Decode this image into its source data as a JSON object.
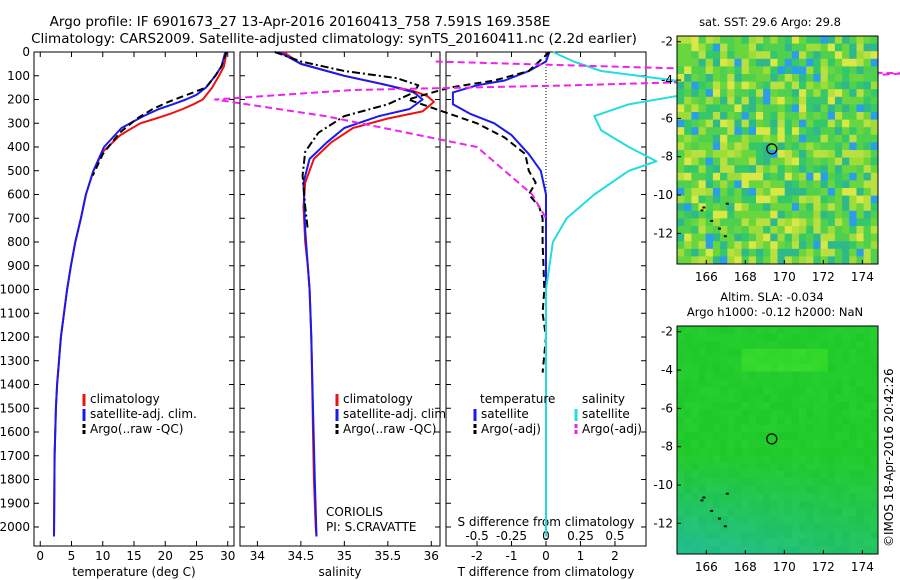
{
  "header": {
    "line1": "Argo profile: IF 6901673_27 13-Apr-2016 20160413_758 7.591S 169.358E",
    "line2": "Climatology: CARS2009. Satellite-adjusted climatology: synTS_20160411.nc (2.2d earlier)"
  },
  "credit": "©IMOS 18-Apr-2016 20:42:26",
  "colors": {
    "climatology": "#ee1111",
    "satellite": "#1a1aee",
    "argo": "#000000",
    "sal_satellite": "#22dddd",
    "sal_argo": "#ee22ee"
  },
  "chart_data": [
    {
      "type": "line",
      "panel": "temperature",
      "xlabel": "temperature (deg C)",
      "xticks": [
        0,
        5,
        10,
        15,
        20,
        25,
        30
      ],
      "xlim": [
        -1,
        31
      ],
      "ylim": [
        2080,
        0
      ],
      "yticks": [
        0,
        100,
        200,
        300,
        400,
        500,
        600,
        700,
        800,
        900,
        1000,
        1100,
        1200,
        1300,
        1400,
        1500,
        1600,
        1700,
        1800,
        1900,
        2000
      ],
      "legend": [
        "climatology",
        "satellite-adj. clim.",
        "Argo(..raw -QC)"
      ],
      "series": [
        {
          "name": "climatology",
          "style": "solid",
          "color_key": "climatology",
          "x": [
            29.8,
            29.4,
            28.6,
            27.5,
            26.0,
            24.5,
            22.8,
            20.8,
            18.5,
            16.0,
            12.8,
            10.0,
            8.5,
            7.3,
            6.5,
            5.6,
            4.9,
            4.3,
            3.8,
            3.3,
            3.0,
            2.7,
            2.5,
            2.3,
            2.2
          ],
          "y": [
            0,
            60,
            100,
            150,
            200,
            220,
            240,
            260,
            280,
            300,
            350,
            420,
            500,
            600,
            700,
            800,
            900,
            1000,
            1100,
            1200,
            1300,
            1400,
            1500,
            1700,
            2040
          ]
        },
        {
          "name": "satellite-adj. clim.",
          "style": "solid",
          "color_key": "satellite",
          "x": [
            29.6,
            29.0,
            28.0,
            26.5,
            25.0,
            23.3,
            21.2,
            19.0,
            16.5,
            13.0,
            10.2,
            8.5,
            7.3,
            6.5,
            5.6,
            4.9,
            4.3,
            3.8,
            3.3,
            3.0,
            2.7,
            2.5,
            2.3,
            2.2
          ],
          "y": [
            0,
            60,
            100,
            150,
            180,
            200,
            220,
            240,
            270,
            320,
            400,
            500,
            600,
            700,
            800,
            900,
            1000,
            1100,
            1200,
            1300,
            1400,
            1500,
            1700,
            2040
          ]
        },
        {
          "name": "Argo(..raw -QC)",
          "style": "dashed",
          "color_key": "argo",
          "x": [
            29.8,
            29.0,
            28.0,
            26.5,
            24.5,
            22.5,
            20.5,
            18.0,
            15.5,
            12.7,
            10.0,
            8.4
          ],
          "y": [
            0,
            60,
            100,
            150,
            170,
            190,
            210,
            240,
            280,
            340,
            430,
            520
          ]
        }
      ]
    },
    {
      "type": "line",
      "panel": "salinity",
      "xlabel": "salinity",
      "xticks": [
        34,
        34.5,
        35,
        35.5,
        36
      ],
      "xlim": [
        33.8,
        36.1
      ],
      "legend": [
        "climatology",
        "satellite-adj. clim.",
        "Argo(..raw -QC)"
      ],
      "annotation": [
        "CORIOLIS",
        "PI: S.CRAVATTE"
      ],
      "series": [
        {
          "name": "climatology",
          "style": "solid",
          "color_key": "climatology",
          "x": [
            34.3,
            34.5,
            35.0,
            35.5,
            35.8,
            35.95,
            36.03,
            35.9,
            35.5,
            35.1,
            34.85,
            34.65,
            34.55,
            34.53,
            34.55,
            34.58,
            34.6,
            34.62,
            34.63,
            34.64,
            34.65,
            34.66,
            34.67,
            34.68
          ],
          "y": [
            0,
            50,
            100,
            140,
            165,
            185,
            210,
            250,
            280,
            320,
            380,
            450,
            550,
            650,
            800,
            900,
            1000,
            1200,
            1400,
            1600,
            1800,
            1900,
            2000,
            2040
          ]
        },
        {
          "name": "satellite-adj. clim.",
          "style": "solid",
          "color_key": "satellite",
          "x": [
            34.25,
            34.5,
            35.0,
            35.5,
            35.8,
            35.9,
            35.75,
            35.4,
            35.0,
            34.8,
            34.6,
            34.53,
            34.55,
            34.58,
            34.6,
            34.62,
            34.64,
            34.66,
            34.68
          ],
          "y": [
            0,
            50,
            100,
            140,
            170,
            200,
            240,
            270,
            320,
            380,
            450,
            550,
            750,
            900,
            1000,
            1200,
            1500,
            1800,
            2040
          ]
        },
        {
          "name": "Argo(..raw -QC)",
          "style": "dashdot",
          "color_key": "argo",
          "x": [
            34.2,
            34.5,
            35.0,
            35.6,
            35.85,
            35.8,
            35.5,
            35.0,
            34.7,
            34.55,
            34.52,
            34.55,
            34.58
          ],
          "y": [
            0,
            40,
            80,
            110,
            140,
            170,
            220,
            270,
            340,
            420,
            520,
            650,
            750
          ]
        }
      ]
    },
    {
      "type": "line",
      "panel": "difference",
      "xlabel": "T difference from climatology",
      "xlabel_top": "S difference from climatology",
      "xticks": [
        -2,
        -1,
        0,
        1,
        2
      ],
      "sticks": [
        -0.5,
        -0.25,
        0,
        0.25,
        0.5
      ],
      "xlim": [
        -2.9,
        2.9
      ],
      "legend_temperature_title": "temperature",
      "legend_salinity_title": "salinity",
      "legend": [
        "satellite",
        "Argo(-adj)"
      ],
      "series": [
        {
          "name": "satellite",
          "group": "temperature",
          "style": "solid",
          "color_key": "satellite",
          "x": [
            0.1,
            0.0,
            -0.5,
            -1.2,
            -2.0,
            -2.7,
            -2.7,
            -2.2,
            -1.5,
            -1.0,
            -0.5,
            -0.15,
            0.0,
            0.0,
            0.0,
            0.0
          ],
          "y": [
            0,
            40,
            80,
            120,
            140,
            170,
            220,
            260,
            300,
            350,
            430,
            500,
            600,
            800,
            1200,
            2040
          ]
        },
        {
          "name": "Argo(-adj)",
          "group": "temperature",
          "style": "dashed",
          "color_key": "argo",
          "x": [
            0.1,
            -0.2,
            -0.5,
            -1.5,
            -2.8,
            -4.0,
            -3.0,
            -2.0,
            -1.2,
            -0.6,
            -0.5,
            -0.3,
            -0.5,
            -0.2,
            -0.1,
            -0.1,
            -0.05,
            -0.1,
            0.0,
            -0.1
          ],
          "y": [
            0,
            40,
            80,
            120,
            150,
            200,
            250,
            300,
            360,
            430,
            500,
            550,
            600,
            650,
            700,
            800,
            1000,
            1100,
            1200,
            1350
          ]
        },
        {
          "name": "satellite",
          "group": "salinity",
          "style": "solid",
          "color_key": "sal_satellite",
          "x": [
            0.05,
            0.2,
            0.4,
            0.8,
            1.2,
            1.0,
            0.6,
            0.35,
            0.4,
            0.6,
            0.8,
            0.6,
            0.35,
            0.15,
            0.05,
            0.0,
            0.0
          ],
          "y": [
            0,
            40,
            80,
            110,
            140,
            180,
            220,
            270,
            330,
            400,
            460,
            500,
            600,
            700,
            800,
            1000,
            2040
          ]
        },
        {
          "name": "Argo(-adj)",
          "group": "salinity",
          "style": "dashed",
          "color_key": "sal_argo",
          "x": [
            -0.8,
            1.0,
            2.6,
            2.0,
            0.2,
            -1.4,
            -2.4,
            -1.6,
            -0.5,
            -0.1,
            0.0
          ],
          "y": [
            40,
            70,
            90,
            110,
            140,
            160,
            200,
            270,
            400,
            600,
            700
          ]
        }
      ]
    },
    {
      "type": "heatmap",
      "panel": "sst_map",
      "title": "sat. SST: 29.6  Argo: 29.8",
      "xticks": [
        166,
        168,
        170,
        172,
        174
      ],
      "yticks": [
        -2,
        -4,
        -6,
        -8,
        -10,
        -12
      ],
      "xlim": [
        164.5,
        174.8
      ],
      "ylim": [
        -13.6,
        -1.7
      ],
      "marker": {
        "lon": 169.358,
        "lat": -7.591
      }
    },
    {
      "type": "heatmap",
      "panel": "sla_map",
      "title": "Altim. SLA: -0.034",
      "subtitle": "Argo h1000: -0.12 h2000: NaN",
      "xticks": [
        166,
        168,
        170,
        172,
        174
      ],
      "yticks": [
        -2,
        -4,
        -6,
        -8,
        -10,
        -12
      ],
      "xlim": [
        164.5,
        174.8
      ],
      "ylim": [
        -13.6,
        -1.7
      ],
      "marker": {
        "lon": 169.358,
        "lat": -7.591
      }
    }
  ]
}
